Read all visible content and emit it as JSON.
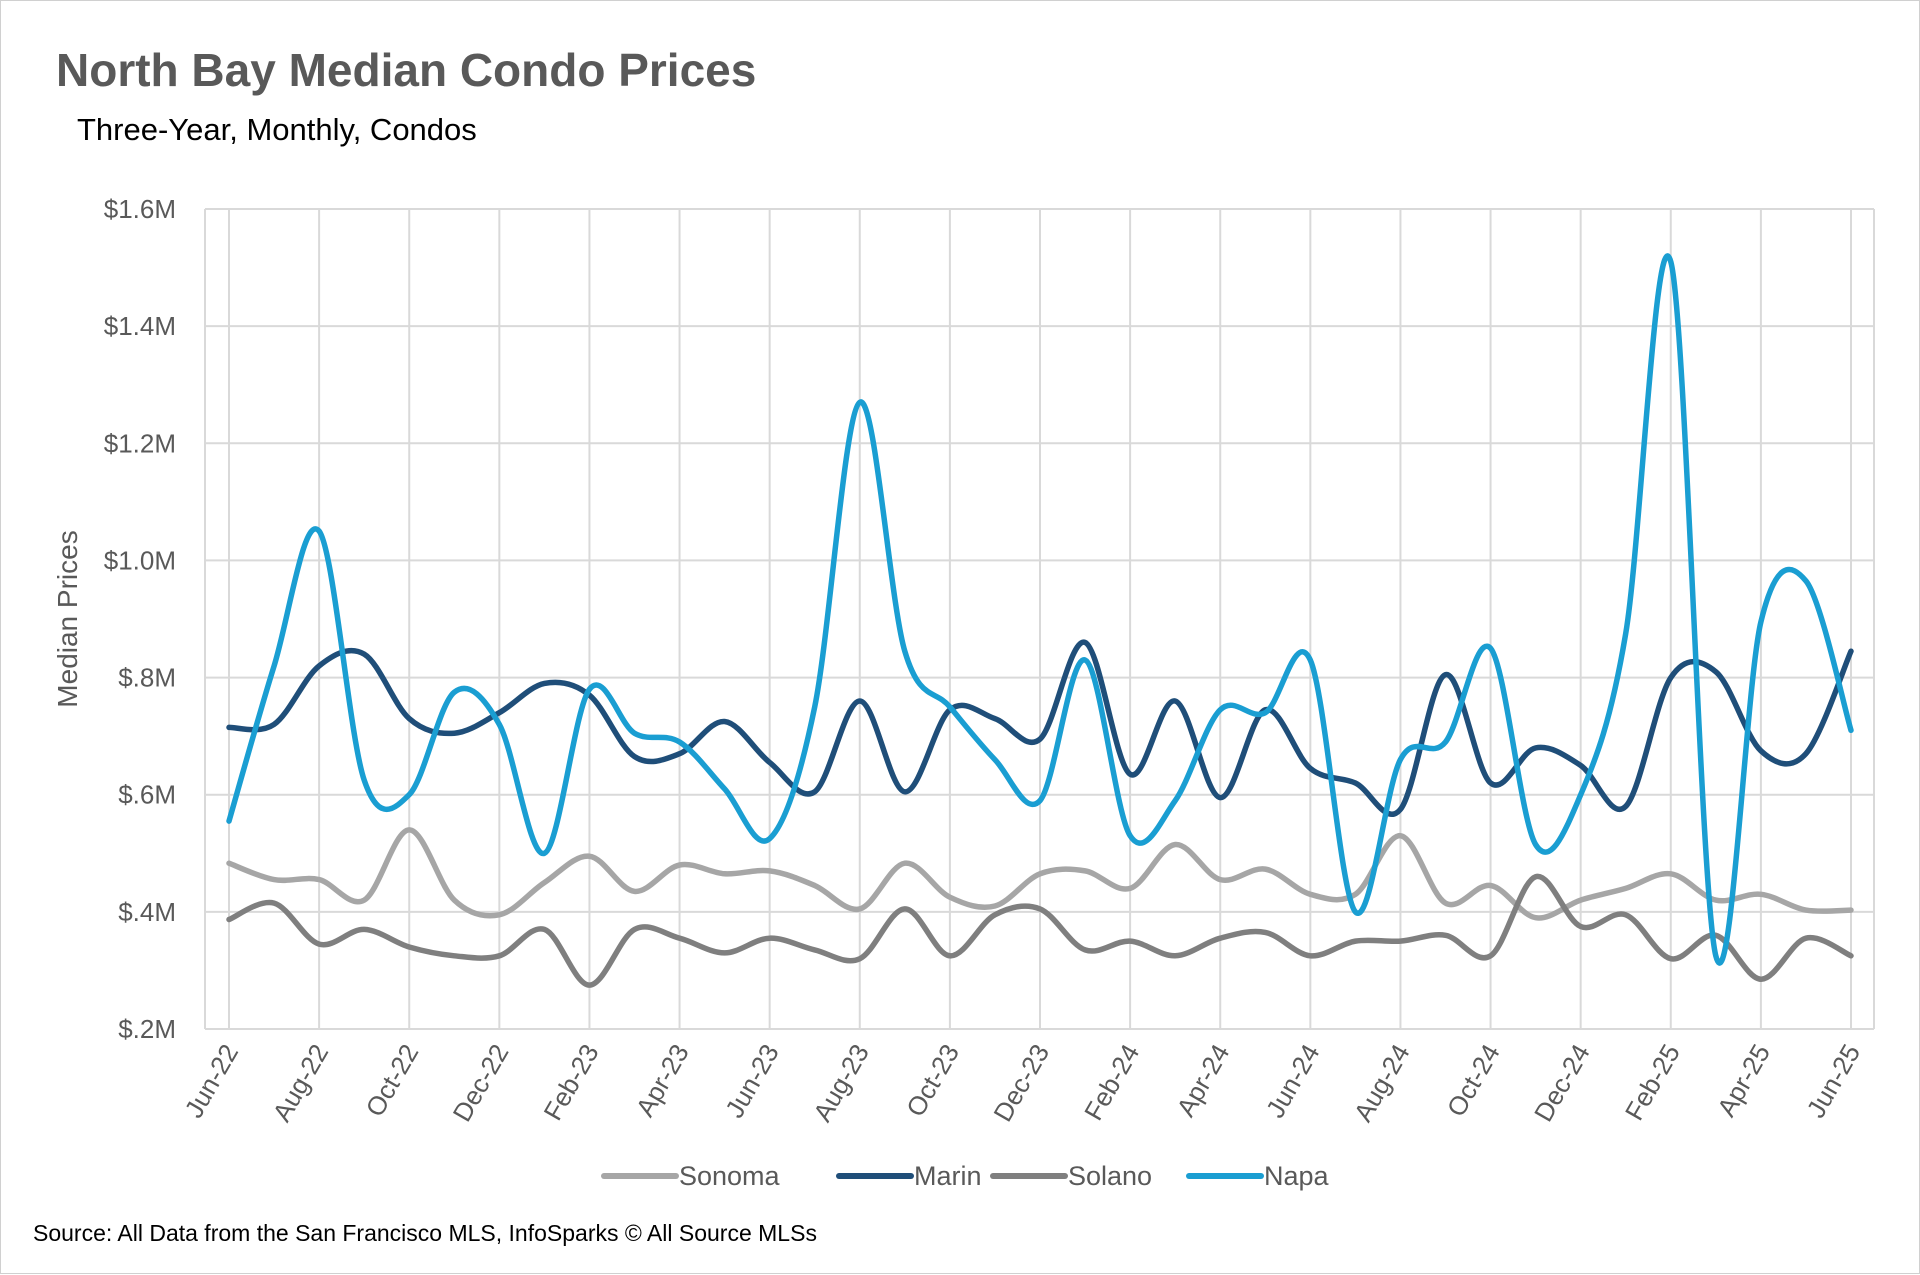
{
  "chart_data": {
    "type": "line",
    "title": "North Bay Median Condo Prices",
    "subtitle": "Three-Year, Monthly, Condos",
    "xlabel": "",
    "ylabel": "Median Prices",
    "ylim": [
      200000,
      1600000
    ],
    "yticks": [
      {
        "value": 200000,
        "label": "$.2M"
      },
      {
        "value": 400000,
        "label": "$.4M"
      },
      {
        "value": 600000,
        "label": "$.6M"
      },
      {
        "value": 800000,
        "label": "$.8M"
      },
      {
        "value": 1000000,
        "label": "$1.0M"
      },
      {
        "value": 1200000,
        "label": "$1.2M"
      },
      {
        "value": 1400000,
        "label": "$1.4M"
      },
      {
        "value": 1600000,
        "label": "$1.6M"
      }
    ],
    "categories": [
      "Jun-22",
      "Jul-22",
      "Aug-22",
      "Sep-22",
      "Oct-22",
      "Nov-22",
      "Dec-22",
      "Jan-23",
      "Feb-23",
      "Mar-23",
      "Apr-23",
      "May-23",
      "Jun-23",
      "Jul-23",
      "Aug-23",
      "Sep-23",
      "Oct-23",
      "Nov-23",
      "Dec-23",
      "Jan-24",
      "Feb-24",
      "Mar-24",
      "Apr-24",
      "May-24",
      "Jun-24",
      "Jul-24",
      "Aug-24",
      "Sep-24",
      "Oct-24",
      "Nov-24",
      "Dec-24",
      "Jan-25",
      "Feb-25",
      "Mar-25",
      "Apr-25",
      "May-25",
      "Jun-25"
    ],
    "xtick_labels": [
      "Jun-22",
      "Aug-22",
      "Oct-22",
      "Dec-22",
      "Feb-23",
      "Apr-23",
      "Jun-23",
      "Aug-23",
      "Oct-23",
      "Dec-23",
      "Feb-24",
      "Apr-24",
      "Jun-24",
      "Aug-24",
      "Oct-24",
      "Dec-24",
      "Feb-25",
      "Apr-25",
      "Jun-25"
    ],
    "grid": true,
    "legend_position": "bottom",
    "series": [
      {
        "name": "Sonoma",
        "color": "#a6a6a6",
        "values": [
          483000,
          455000,
          455000,
          420000,
          540000,
          420000,
          395000,
          450000,
          495000,
          435000,
          480000,
          465000,
          470000,
          445000,
          405000,
          483000,
          425000,
          410000,
          465000,
          470000,
          440000,
          515000,
          455000,
          473000,
          430000,
          430000,
          530000,
          415000,
          445000,
          390000,
          420000,
          440000,
          465000,
          420000,
          430000,
          403000,
          403000
        ]
      },
      {
        "name": "Marin",
        "color": "#1f4e79",
        "values": [
          715000,
          720000,
          820000,
          840000,
          730000,
          705000,
          740000,
          790000,
          770000,
          665000,
          670000,
          725000,
          655000,
          605000,
          760000,
          605000,
          745000,
          730000,
          695000,
          860000,
          635000,
          760000,
          595000,
          745000,
          645000,
          620000,
          575000,
          805000,
          620000,
          680000,
          650000,
          580000,
          800000,
          810000,
          675000,
          670000,
          845000
        ]
      },
      {
        "name": "Solano",
        "color": "#7f7f7f",
        "values": [
          387000,
          415000,
          345000,
          370000,
          340000,
          325000,
          325000,
          370000,
          275000,
          370000,
          355000,
          330000,
          355000,
          335000,
          320000,
          405000,
          325000,
          395000,
          405000,
          335000,
          350000,
          325000,
          355000,
          365000,
          325000,
          350000,
          350000,
          360000,
          325000,
          460000,
          375000,
          395000,
          320000,
          360000,
          285000,
          355000,
          325000
        ]
      },
      {
        "name": "Napa",
        "color": "#1a9ed2",
        "values": [
          555000,
          820000,
          1050000,
          625000,
          600000,
          775000,
          720000,
          500000,
          780000,
          705000,
          690000,
          610000,
          525000,
          750000,
          1270000,
          845000,
          750000,
          660000,
          590000,
          830000,
          530000,
          590000,
          745000,
          740000,
          830000,
          400000,
          660000,
          690000,
          850000,
          515000,
          600000,
          875000,
          1510000,
          325000,
          895000,
          965000,
          710000
        ]
      }
    ]
  },
  "footer": {
    "source": "Source: All Data from the San Francisco MLS, InfoSparks © All Source MLSs"
  }
}
